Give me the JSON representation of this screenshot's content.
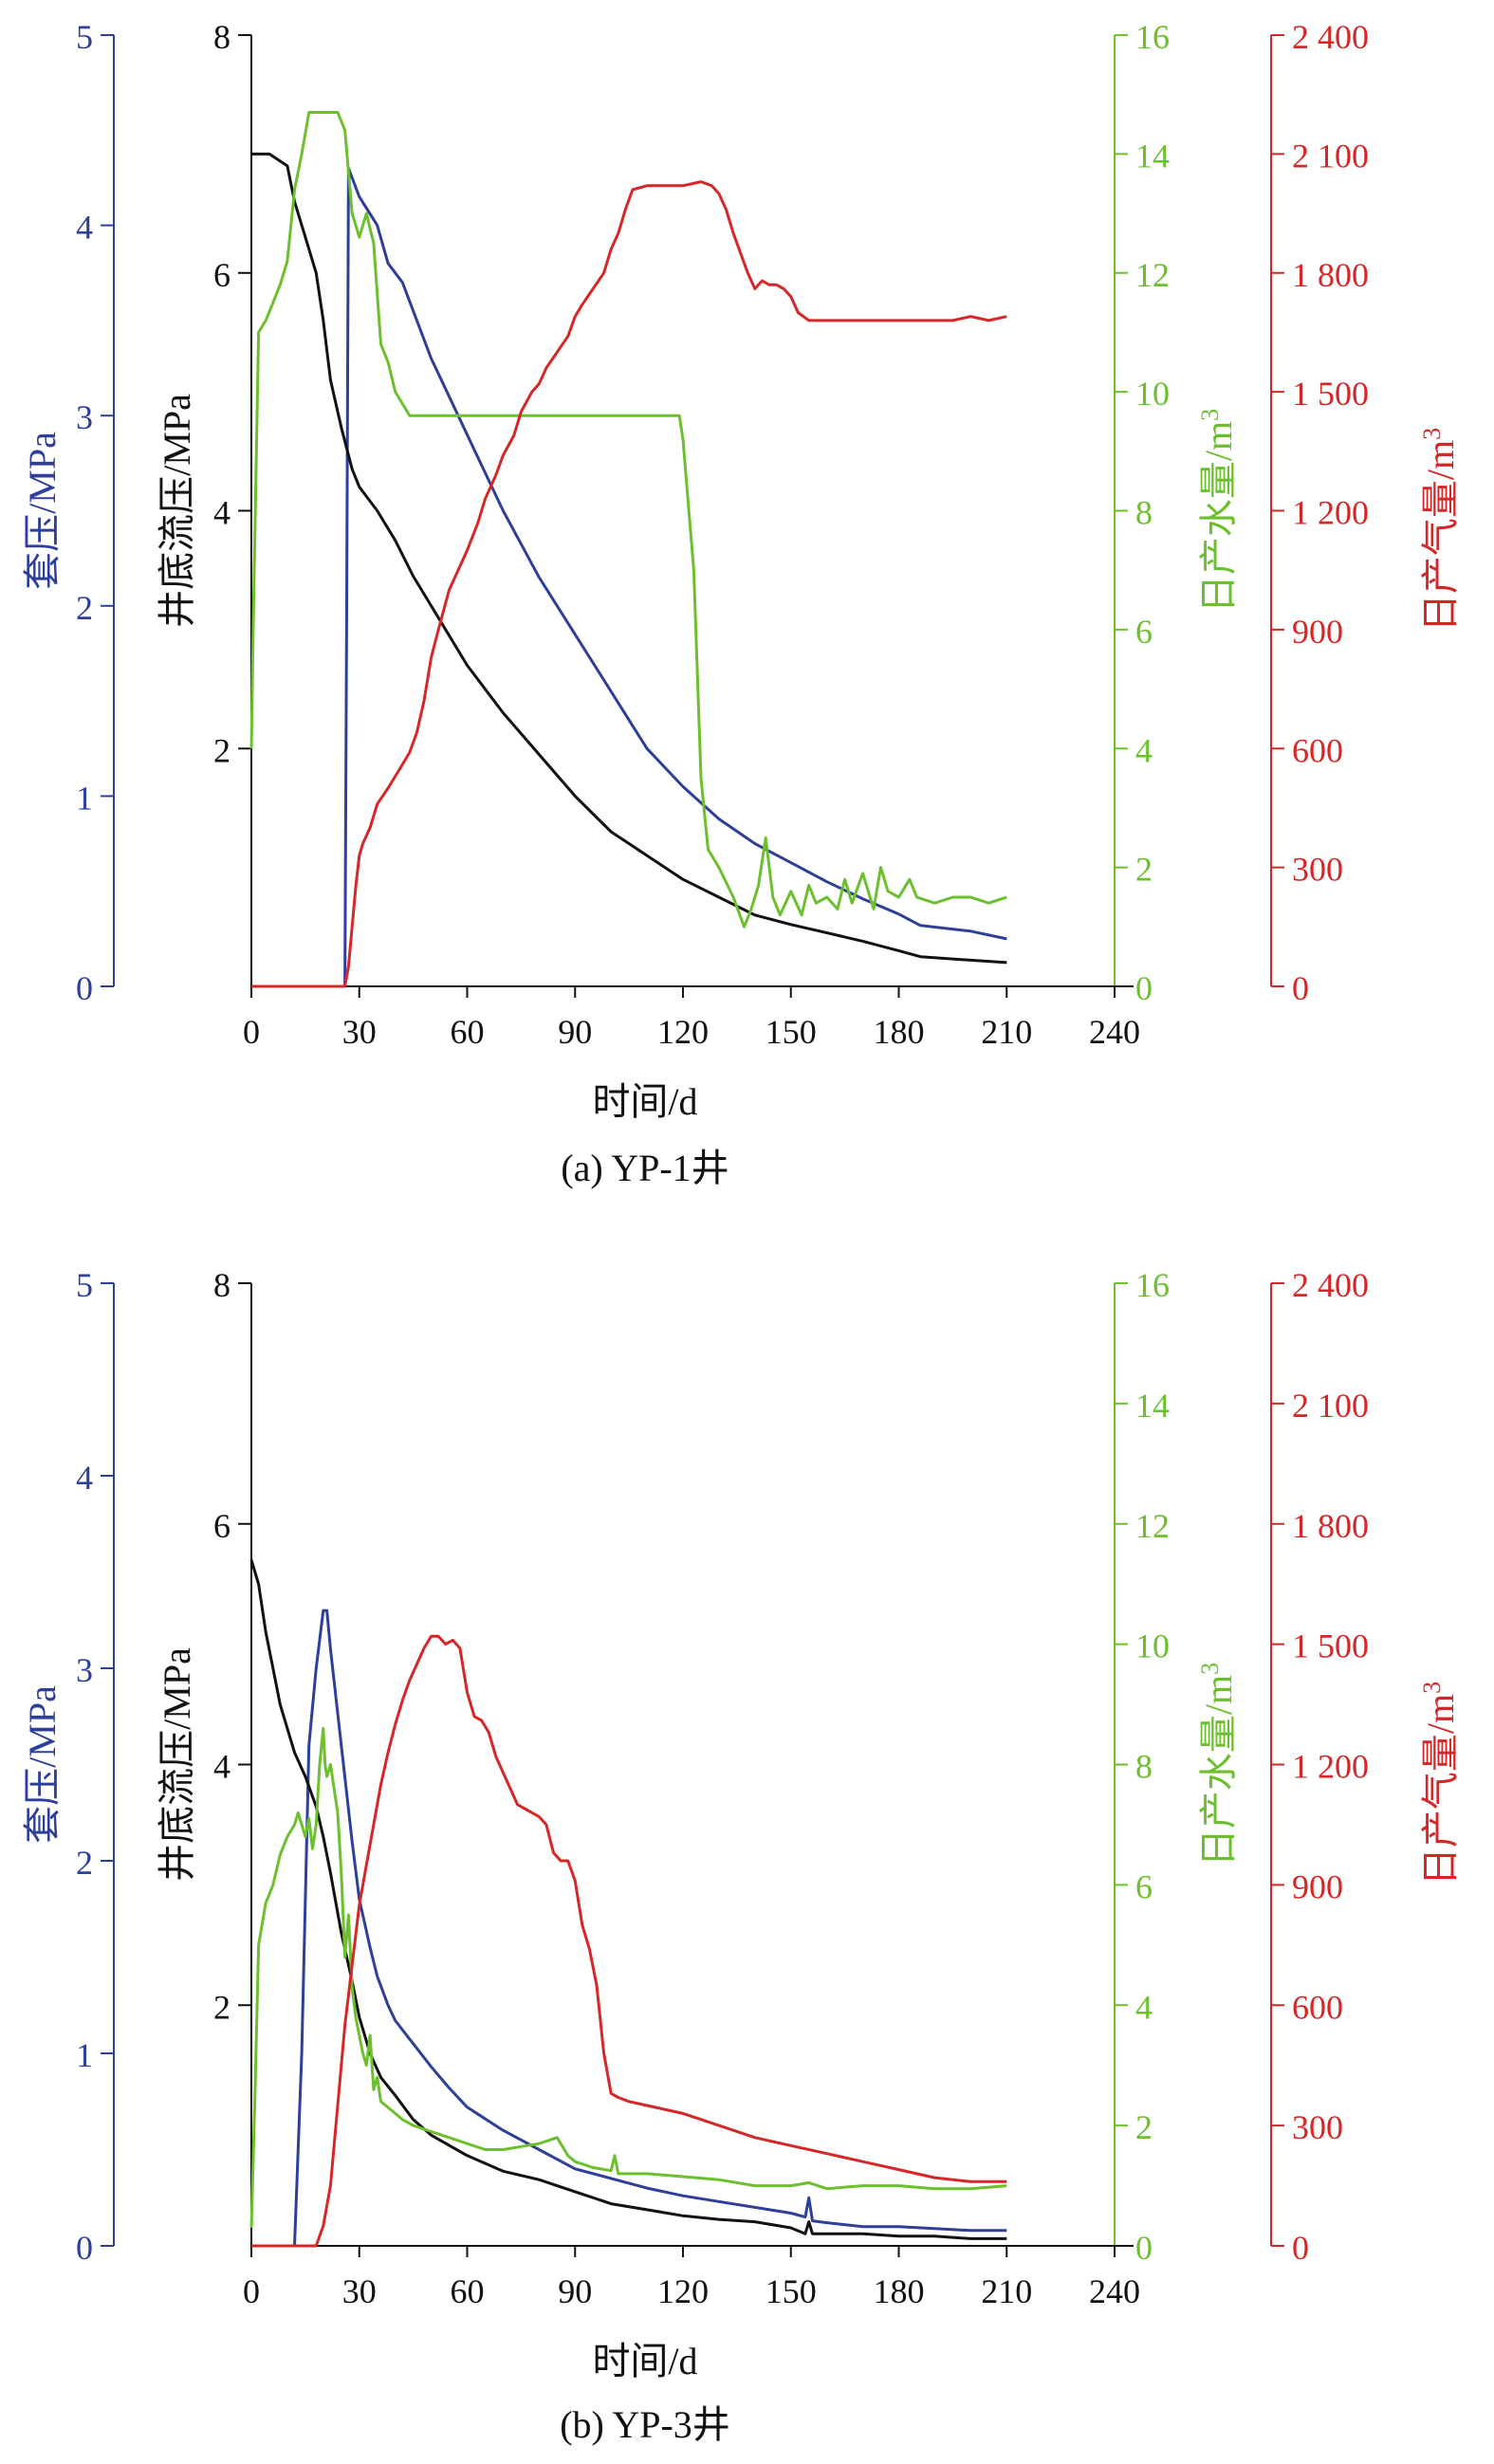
{
  "chart_data": [
    {
      "type": "line",
      "caption": "(a) YP-1井",
      "xlabel": "时间/d",
      "xlim": [
        0,
        240
      ],
      "xticks": [
        0,
        30,
        60,
        90,
        120,
        150,
        180,
        210,
        240
      ],
      "axes": {
        "casing": {
          "label": "套压/MPa",
          "lim": [
            0,
            5
          ],
          "ticks": [
            0,
            1,
            2,
            3,
            4,
            5
          ],
          "tick_labels": [
            "0",
            "1",
            "2",
            "3",
            "4",
            "5"
          ],
          "color": "#2e3f9a"
        },
        "bhp": {
          "label": "井底流压/MPa",
          "lim": [
            0,
            8
          ],
          "ticks": [
            2,
            4,
            6,
            8
          ],
          "tick_labels": [
            "2",
            "4",
            "6",
            "8"
          ],
          "color": "#111111"
        },
        "water": {
          "label": "日产水量/m",
          "sup": "3",
          "lim": [
            0,
            16
          ],
          "ticks": [
            0,
            2,
            4,
            6,
            8,
            10,
            12,
            14,
            16
          ],
          "tick_labels": [
            "0",
            "2",
            "4",
            "6",
            "8",
            "10",
            "12",
            "14",
            "16"
          ],
          "color": "#6cbf2d"
        },
        "gas": {
          "label": "日产气量/m",
          "sup": "3",
          "lim": [
            0,
            2400
          ],
          "ticks": [
            0,
            300,
            600,
            900,
            1200,
            1500,
            1800,
            2100,
            2400
          ],
          "tick_labels": [
            "0",
            "300",
            "600",
            "900",
            "1 200",
            "1 500",
            "1 800",
            "2 100",
            "2 400"
          ],
          "color": "#d62728"
        }
      },
      "series": [
        {
          "axis": "casing",
          "x": [
            0,
            26,
            26.5,
            27,
            30,
            35,
            38,
            42,
            50,
            60,
            70,
            80,
            90,
            100,
            105,
            110,
            120,
            130,
            140,
            150,
            160,
            170,
            180,
            186,
            200,
            210
          ],
          "y": [
            0,
            0,
            2.0,
            4.3,
            4.15,
            4.0,
            3.8,
            3.7,
            3.3,
            2.9,
            2.5,
            2.15,
            1.85,
            1.55,
            1.4,
            1.25,
            1.05,
            0.88,
            0.75,
            0.65,
            0.55,
            0.46,
            0.38,
            0.32,
            0.29,
            0.25
          ]
        },
        {
          "axis": "bhp",
          "x": [
            0,
            5,
            10,
            12,
            15,
            18,
            20,
            22,
            25,
            28,
            30,
            35,
            38,
            40,
            45,
            50,
            60,
            70,
            80,
            90,
            100,
            105,
            110,
            120,
            130,
            140,
            150,
            160,
            170,
            180,
            186,
            200,
            210
          ],
          "y": [
            7.0,
            7.0,
            6.9,
            6.6,
            6.3,
            6.0,
            5.6,
            5.1,
            4.7,
            4.35,
            4.2,
            4.0,
            3.85,
            3.75,
            3.45,
            3.2,
            2.7,
            2.3,
            1.95,
            1.6,
            1.3,
            1.2,
            1.1,
            0.9,
            0.75,
            0.6,
            0.52,
            0.45,
            0.38,
            0.3,
            0.25,
            0.22,
            0.2
          ]
        },
        {
          "axis": "water",
          "x": [
            0,
            0.5,
            2,
            4,
            6,
            8,
            10,
            12,
            14,
            16,
            18,
            20,
            22,
            24,
            26,
            28,
            30,
            32,
            34,
            36,
            38,
            40,
            44,
            60,
            80,
            100,
            119,
            120,
            123,
            125,
            127,
            130,
            134,
            137,
            139,
            141,
            143,
            145,
            147,
            150,
            153,
            155,
            157,
            160,
            163,
            165,
            167,
            170,
            173,
            175,
            177,
            180,
            183,
            185,
            190,
            195,
            200,
            205,
            210
          ],
          "y": [
            4.0,
            6.0,
            11.0,
            11.2,
            11.5,
            11.8,
            12.2,
            13.4,
            14.0,
            14.7,
            14.7,
            14.7,
            14.7,
            14.7,
            14.4,
            13.0,
            12.6,
            13.0,
            12.5,
            10.8,
            10.5,
            10.0,
            9.6,
            9.6,
            9.6,
            9.6,
            9.6,
            9.2,
            7.0,
            3.5,
            2.3,
            2.0,
            1.5,
            1.0,
            1.3,
            1.7,
            2.5,
            1.5,
            1.2,
            1.6,
            1.2,
            1.7,
            1.4,
            1.5,
            1.3,
            1.8,
            1.4,
            1.9,
            1.3,
            2.0,
            1.6,
            1.5,
            1.8,
            1.5,
            1.4,
            1.5,
            1.5,
            1.4,
            1.5
          ]
        },
        {
          "axis": "gas",
          "x": [
            0,
            26,
            27,
            28,
            29,
            30,
            31,
            33,
            35,
            38,
            40,
            42,
            44,
            46,
            48,
            50,
            52,
            55,
            58,
            60,
            63,
            65,
            68,
            70,
            73,
            75,
            78,
            80,
            82,
            85,
            88,
            90,
            92,
            95,
            98,
            100,
            102,
            104,
            106,
            110,
            115,
            120,
            125,
            128,
            130,
            132,
            134,
            136,
            138,
            140,
            142,
            144,
            146,
            148,
            150,
            152,
            155,
            158,
            160,
            170,
            180,
            190,
            195,
            200,
            205,
            210
          ],
          "y": [
            0,
            0,
            50,
            150,
            250,
            330,
            360,
            400,
            460,
            500,
            530,
            560,
            590,
            640,
            720,
            830,
            900,
            1000,
            1060,
            1100,
            1170,
            1230,
            1290,
            1340,
            1390,
            1450,
            1500,
            1520,
            1560,
            1600,
            1640,
            1690,
            1720,
            1760,
            1800,
            1860,
            1900,
            1960,
            2010,
            2020,
            2020,
            2020,
            2030,
            2020,
            2000,
            1960,
            1900,
            1850,
            1800,
            1760,
            1780,
            1770,
            1770,
            1760,
            1740,
            1700,
            1680,
            1680,
            1680,
            1680,
            1680,
            1680,
            1680,
            1690,
            1680,
            1690
          ]
        }
      ]
    },
    {
      "type": "line",
      "caption": "(b) YP-3井",
      "xlabel": "时间/d",
      "xlim": [
        0,
        240
      ],
      "xticks": [
        0,
        30,
        60,
        90,
        120,
        150,
        180,
        210,
        240
      ],
      "axes": {
        "casing": {
          "label": "套压/MPa",
          "lim": [
            0,
            5
          ],
          "ticks": [
            0,
            1,
            2,
            3,
            4,
            5
          ],
          "tick_labels": [
            "0",
            "1",
            "2",
            "3",
            "4",
            "5"
          ],
          "color": "#2e3f9a"
        },
        "bhp": {
          "label": "井底流压/MPa",
          "lim": [
            0,
            8
          ],
          "ticks": [
            2,
            4,
            6,
            8
          ],
          "tick_labels": [
            "2",
            "4",
            "6",
            "8"
          ],
          "color": "#111111"
        },
        "water": {
          "label": "日产水量/m",
          "sup": "3",
          "lim": [
            0,
            16
          ],
          "ticks": [
            0,
            2,
            4,
            6,
            8,
            10,
            12,
            14,
            16
          ],
          "tick_labels": [
            "0",
            "2",
            "4",
            "6",
            "8",
            "10",
            "12",
            "14",
            "16"
          ],
          "color": "#6cbf2d"
        },
        "gas": {
          "label": "日产气量/m",
          "sup": "3",
          "lim": [
            0,
            2400
          ],
          "ticks": [
            0,
            300,
            600,
            900,
            1200,
            1500,
            1800,
            2100,
            2400
          ],
          "tick_labels": [
            "0",
            "300",
            "600",
            "900",
            "1 200",
            "1 500",
            "1 800",
            "2 100",
            "2 400"
          ],
          "color": "#d62728"
        }
      },
      "series": [
        {
          "axis": "casing",
          "x": [
            0,
            12,
            14,
            16,
            18,
            20,
            21,
            22,
            25,
            28,
            30,
            33,
            35,
            38,
            40,
            45,
            50,
            55,
            60,
            70,
            80,
            90,
            100,
            110,
            120,
            130,
            140,
            150,
            154,
            155,
            156,
            160,
            170,
            180,
            190,
            200,
            210
          ],
          "y": [
            0,
            0,
            1.0,
            2.6,
            3.0,
            3.3,
            3.3,
            3.1,
            2.6,
            2.1,
            1.8,
            1.55,
            1.4,
            1.25,
            1.17,
            1.05,
            0.93,
            0.82,
            0.72,
            0.6,
            0.5,
            0.4,
            0.35,
            0.3,
            0.26,
            0.23,
            0.2,
            0.17,
            0.15,
            0.25,
            0.13,
            0.12,
            0.1,
            0.1,
            0.09,
            0.08,
            0.08
          ]
        },
        {
          "axis": "bhp",
          "x": [
            0,
            2,
            4,
            6,
            8,
            10,
            12,
            15,
            18,
            20,
            22,
            25,
            28,
            30,
            33,
            36,
            40,
            45,
            50,
            60,
            70,
            80,
            90,
            100,
            110,
            120,
            130,
            140,
            150,
            154,
            155,
            156,
            160,
            170,
            180,
            190,
            200,
            210
          ],
          "y": [
            5.7,
            5.5,
            5.1,
            4.8,
            4.5,
            4.3,
            4.1,
            3.9,
            3.65,
            3.4,
            3.1,
            2.6,
            2.2,
            1.9,
            1.6,
            1.4,
            1.25,
            1.05,
            0.92,
            0.75,
            0.62,
            0.55,
            0.45,
            0.35,
            0.3,
            0.25,
            0.22,
            0.2,
            0.15,
            0.1,
            0.2,
            0.1,
            0.1,
            0.1,
            0.08,
            0.08,
            0.06,
            0.06
          ]
        },
        {
          "axis": "water",
          "x": [
            0,
            1,
            2,
            4,
            6,
            8,
            10,
            12,
            13,
            14,
            15,
            16,
            17,
            18,
            19,
            20,
            20.5,
            21,
            22,
            23,
            24,
            25,
            26,
            27,
            28,
            29,
            30,
            31,
            32,
            33,
            34,
            35,
            36,
            38,
            40,
            42,
            45,
            50,
            55,
            60,
            65,
            70,
            75,
            80,
            85,
            88,
            90,
            95,
            100,
            101,
            102,
            110,
            120,
            130,
            140,
            150,
            155,
            160,
            170,
            180,
            190,
            200,
            210
          ],
          "y": [
            0.3,
            2.5,
            5.0,
            5.7,
            6.0,
            6.5,
            6.8,
            7.0,
            7.2,
            7.0,
            6.8,
            7.1,
            6.6,
            7.0,
            8.0,
            8.6,
            8.0,
            7.8,
            8.0,
            7.6,
            7.2,
            6.2,
            4.8,
            5.5,
            4.3,
            3.8,
            3.5,
            3.2,
            3.0,
            3.5,
            2.6,
            2.8,
            2.4,
            2.3,
            2.2,
            2.1,
            2.0,
            1.9,
            1.8,
            1.7,
            1.6,
            1.6,
            1.65,
            1.7,
            1.8,
            1.5,
            1.4,
            1.3,
            1.25,
            1.5,
            1.2,
            1.2,
            1.15,
            1.1,
            1.0,
            1.0,
            1.05,
            0.95,
            1.0,
            1.0,
            0.95,
            0.95,
            1.0
          ]
        },
        {
          "axis": "gas",
          "x": [
            0,
            18,
            20,
            22,
            24,
            26,
            28,
            30,
            32,
            34,
            36,
            38,
            40,
            42,
            44,
            46,
            48,
            50,
            52,
            54,
            56,
            58,
            60,
            62,
            64,
            66,
            68,
            70,
            72,
            74,
            76,
            78,
            80,
            82,
            84,
            86,
            88,
            90,
            92,
            94,
            96,
            98,
            100,
            102,
            105,
            110,
            120,
            130,
            140,
            150,
            160,
            170,
            180,
            190,
            200,
            210
          ],
          "y": [
            0,
            0,
            50,
            150,
            350,
            550,
            700,
            850,
            950,
            1050,
            1150,
            1230,
            1300,
            1360,
            1410,
            1450,
            1490,
            1520,
            1520,
            1500,
            1510,
            1490,
            1380,
            1320,
            1310,
            1280,
            1220,
            1180,
            1140,
            1100,
            1090,
            1080,
            1070,
            1050,
            980,
            960,
            960,
            910,
            800,
            740,
            650,
            480,
            380,
            370,
            360,
            350,
            330,
            300,
            270,
            250,
            230,
            210,
            190,
            170,
            160,
            160
          ]
        }
      ]
    }
  ]
}
